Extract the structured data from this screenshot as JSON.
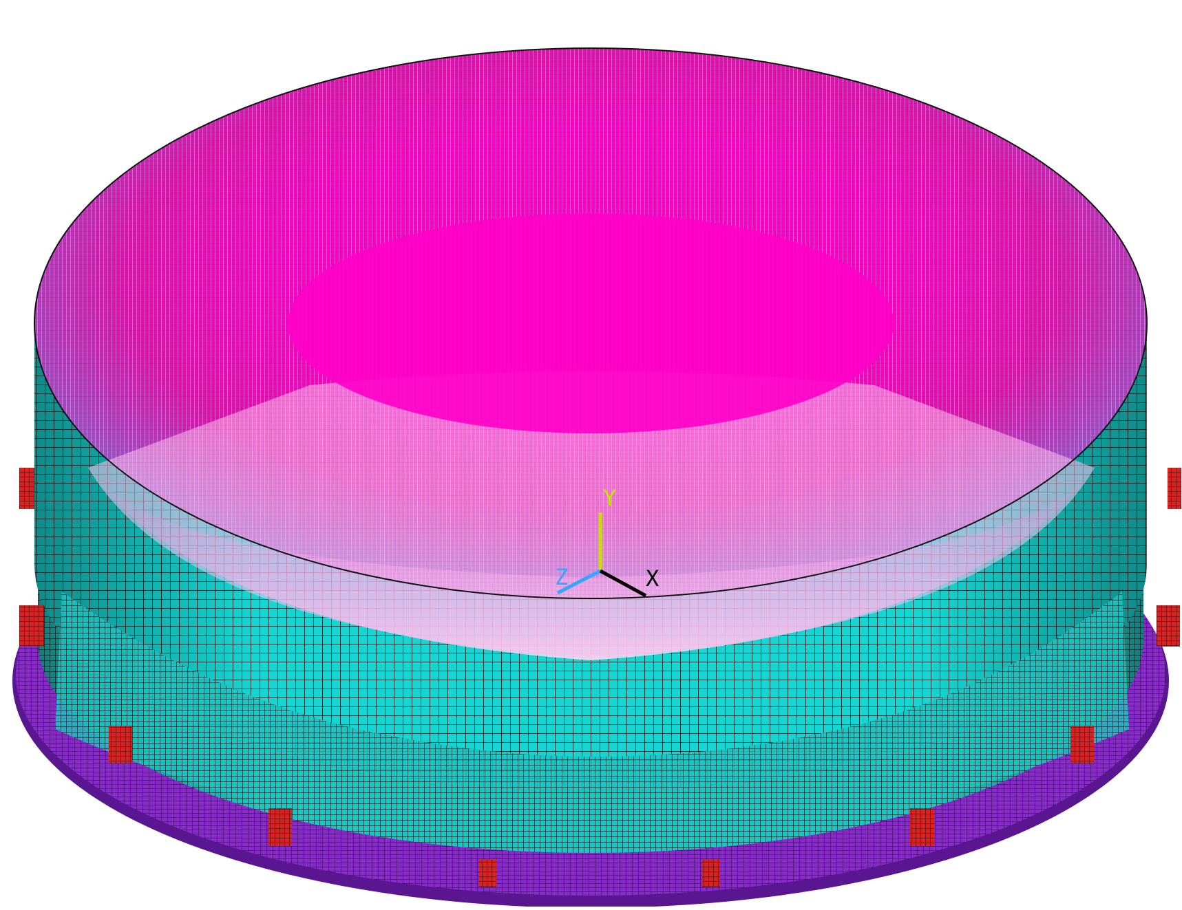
{
  "scene": {
    "type": "finite element mesh, isometric view of cylindrical tank",
    "background_color": "#ffffff"
  },
  "colors": {
    "roof_center": "#ff00cc",
    "roof_light": "#ffb8ec",
    "roof_shade": "#b0188f",
    "roof_rim_blue": "#6a8fe0",
    "wall": "#16d6d3",
    "wall_dark": "#0b8f8e",
    "mesh_line": "#111111",
    "base_ring": "#8b28d0",
    "base_ring_dark": "#5a1690",
    "support": "#d42424",
    "axis_y": "#c8e000",
    "axis_z": "#33a6ff",
    "axis_x": "#000000"
  },
  "triad": {
    "x_label": "X",
    "y_label": "Y",
    "z_label": "Z"
  }
}
